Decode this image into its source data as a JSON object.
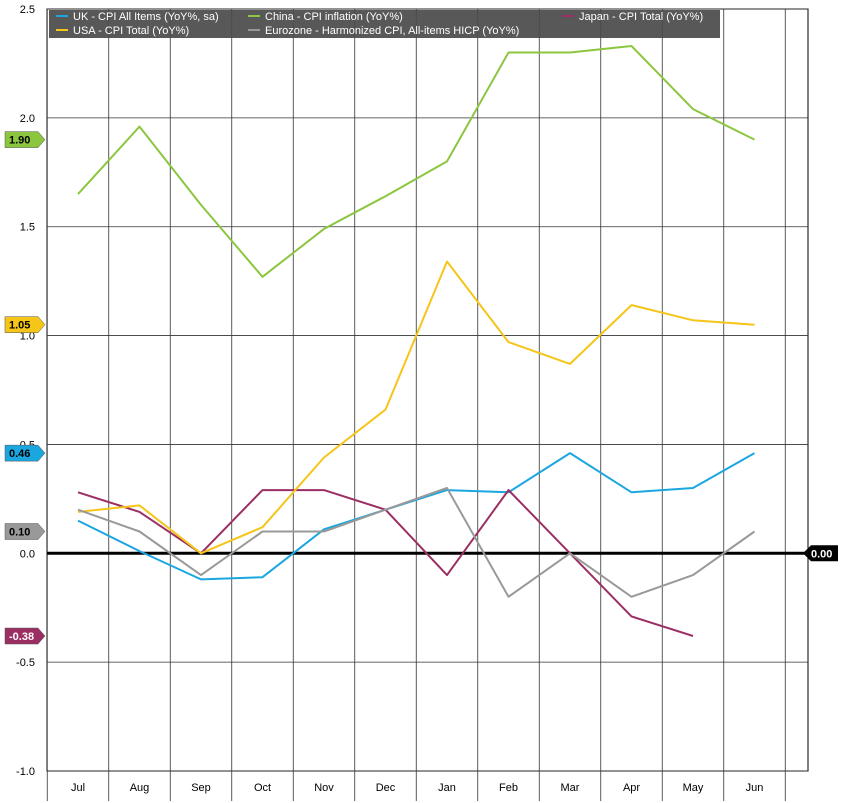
{
  "chart_data": {
    "type": "line",
    "categories": [
      "Jul",
      "Aug",
      "Sep",
      "Oct",
      "Nov",
      "Dec",
      "Jan",
      "Feb",
      "Mar",
      "Apr",
      "May",
      "Jun"
    ],
    "ylim": [
      -1.0,
      2.5
    ],
    "yticks": [
      "2.5",
      "2.0",
      "1.5",
      "1.0",
      "0.5",
      "0.0",
      "-0.5",
      "-1.0"
    ],
    "grid": true,
    "legend_position": "top",
    "series": [
      {
        "name": "UK - CPI All Items (YoY%, sa)",
        "color": "#1aa7e0",
        "values": [
          0.15,
          0.01,
          -0.12,
          -0.11,
          0.11,
          0.2,
          0.29,
          0.28,
          0.46,
          0.28,
          0.3,
          0.46
        ],
        "tag": "0.46"
      },
      {
        "name": "China - CPI inflation (YoY%)",
        "color": "#8cc63f",
        "values": [
          1.65,
          1.96,
          1.6,
          1.27,
          1.49,
          1.64,
          1.8,
          2.3,
          2.3,
          2.33,
          2.04,
          1.9
        ],
        "tag": "1.90"
      },
      {
        "name": "Japan - CPI Total (YoY%)",
        "color": "#9b2f63",
        "values": [
          0.28,
          0.19,
          0.0,
          0.29,
          0.29,
          0.2,
          -0.1,
          0.29,
          0.0,
          -0.29,
          -0.38,
          null
        ],
        "tag": "-0.38"
      },
      {
        "name": "USA - CPI Total (YoY%)",
        "color": "#f5c518",
        "values": [
          0.19,
          0.22,
          0.0,
          0.12,
          0.44,
          0.66,
          1.34,
          0.97,
          0.87,
          1.14,
          1.07,
          1.05
        ],
        "tag": "1.05"
      },
      {
        "name": "Eurozone - Harmonized CPI, All-items HICP (YoY%)",
        "color": "#999999",
        "values": [
          0.2,
          0.1,
          -0.1,
          0.1,
          0.1,
          0.2,
          0.3,
          -0.2,
          0.0,
          -0.2,
          -0.1,
          0.1
        ],
        "tag": "0.10"
      }
    ],
    "zero_tag": "0.00"
  }
}
